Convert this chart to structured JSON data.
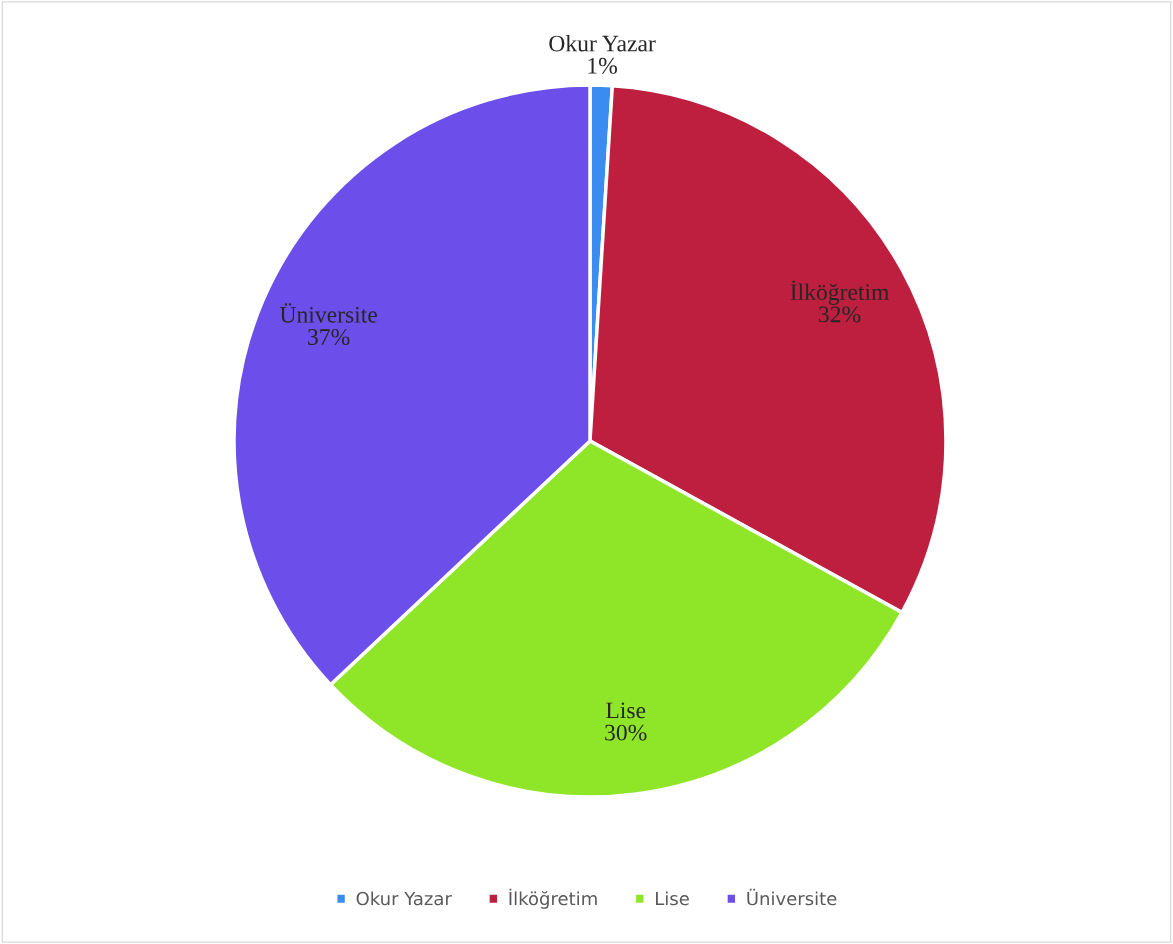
{
  "chart_data": {
    "type": "pie",
    "categories": [
      "Okur Yazar",
      "İlköğretim",
      "Lise",
      "Üniversite"
    ],
    "values": [
      1,
      32,
      30,
      37
    ],
    "value_labels": [
      "1%",
      "32%",
      "30%",
      "37%"
    ],
    "colors": [
      "#3b8cf0",
      "#be1f3f",
      "#8fe628",
      "#6c4fea"
    ],
    "legend": "bottom"
  }
}
